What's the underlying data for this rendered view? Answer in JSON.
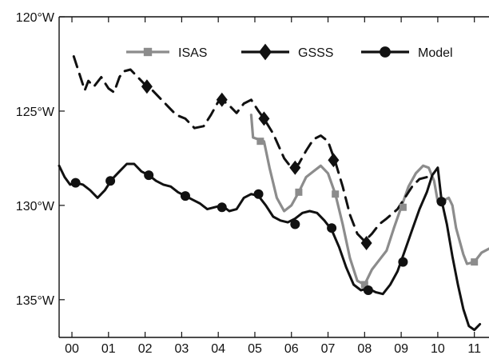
{
  "chart_data": {
    "type": "line",
    "title": "",
    "xlabel": "",
    "ylabel": "",
    "xlim": [
      -0.35,
      11.4
    ],
    "ylim": [
      137,
      120
    ],
    "y_reversed": true,
    "grid": false,
    "legend_position": "top",
    "x_ticks": [
      {
        "value": 0,
        "label": "00"
      },
      {
        "value": 1,
        "label": "01"
      },
      {
        "value": 2,
        "label": "02"
      },
      {
        "value": 3,
        "label": "03"
      },
      {
        "value": 4,
        "label": "04"
      },
      {
        "value": 5,
        "label": "05"
      },
      {
        "value": 6,
        "label": "06"
      },
      {
        "value": 7,
        "label": "07"
      },
      {
        "value": 8,
        "label": "08"
      },
      {
        "value": 9,
        "label": "09"
      },
      {
        "value": 10,
        "label": "10"
      },
      {
        "value": 11,
        "label": "11"
      }
    ],
    "y_ticks": [
      {
        "value": 120,
        "label": "120°W"
      },
      {
        "value": 125,
        "label": "125°W"
      },
      {
        "value": 130,
        "label": "130°W"
      },
      {
        "value": 135,
        "label": "135°W"
      }
    ],
    "series": [
      {
        "name": "ISAS",
        "color": "#8c8c8c",
        "line_style": "solid",
        "marker": "square",
        "points": [
          [
            4.9,
            125.2
          ],
          [
            4.95,
            126.4
          ],
          [
            5.1,
            126.5
          ],
          [
            5.25,
            126.6
          ],
          [
            5.4,
            128.0
          ],
          [
            5.6,
            129.6
          ],
          [
            5.8,
            130.3
          ],
          [
            6.0,
            130.0
          ],
          [
            6.2,
            129.3
          ],
          [
            6.4,
            128.5
          ],
          [
            6.6,
            128.2
          ],
          [
            6.8,
            127.9
          ],
          [
            7.0,
            128.3
          ],
          [
            7.2,
            129.4
          ],
          [
            7.4,
            131.0
          ],
          [
            7.6,
            132.8
          ],
          [
            7.8,
            134.0
          ],
          [
            8.0,
            134.2
          ],
          [
            8.2,
            133.4
          ],
          [
            8.4,
            132.9
          ],
          [
            8.6,
            132.4
          ],
          [
            8.8,
            131.2
          ],
          [
            9.0,
            130.1
          ],
          [
            9.2,
            129.0
          ],
          [
            9.4,
            128.3
          ],
          [
            9.6,
            127.9
          ],
          [
            9.75,
            128.0
          ],
          [
            9.9,
            128.7
          ],
          [
            10.0,
            129.8
          ],
          [
            10.1,
            130.0
          ],
          [
            10.2,
            129.7
          ],
          [
            10.3,
            129.6
          ],
          [
            10.4,
            130.0
          ],
          [
            10.5,
            131.2
          ],
          [
            10.7,
            132.6
          ],
          [
            10.8,
            133.1
          ],
          [
            11.0,
            133.0
          ],
          [
            11.2,
            132.5
          ],
          [
            11.4,
            132.3
          ]
        ],
        "marker_points": [
          [
            5.15,
            126.6
          ],
          [
            6.2,
            129.3
          ],
          [
            7.2,
            129.4
          ],
          [
            8.0,
            134.2
          ],
          [
            9.05,
            130.1
          ],
          [
            11.0,
            133.0
          ]
        ]
      },
      {
        "name": "GSSS",
        "color": "#111111",
        "line_style": "dashed",
        "marker": "diamond",
        "points": [
          [
            0.05,
            122.1
          ],
          [
            0.2,
            123.0
          ],
          [
            0.35,
            123.9
          ],
          [
            0.45,
            123.4
          ],
          [
            0.6,
            123.7
          ],
          [
            0.8,
            123.2
          ],
          [
            1.0,
            123.8
          ],
          [
            1.15,
            124.0
          ],
          [
            1.3,
            123.2
          ],
          [
            1.4,
            122.9
          ],
          [
            1.6,
            122.8
          ],
          [
            1.8,
            123.2
          ],
          [
            2.0,
            123.6
          ],
          [
            2.2,
            123.9
          ],
          [
            2.4,
            124.3
          ],
          [
            2.6,
            124.7
          ],
          [
            2.85,
            125.2
          ],
          [
            3.1,
            125.4
          ],
          [
            3.35,
            125.9
          ],
          [
            3.6,
            125.8
          ],
          [
            3.8,
            125.2
          ],
          [
            4.0,
            124.5
          ],
          [
            4.1,
            124.4
          ],
          [
            4.3,
            124.7
          ],
          [
            4.5,
            125.1
          ],
          [
            4.7,
            124.6
          ],
          [
            4.9,
            124.4
          ],
          [
            5.1,
            125.0
          ],
          [
            5.25,
            125.4
          ],
          [
            5.5,
            126.2
          ],
          [
            5.8,
            127.5
          ],
          [
            6.0,
            128.0
          ],
          [
            6.2,
            127.8
          ],
          [
            6.4,
            127.1
          ],
          [
            6.6,
            126.5
          ],
          [
            6.8,
            126.3
          ],
          [
            7.0,
            126.6
          ],
          [
            7.2,
            127.7
          ],
          [
            7.4,
            129.0
          ],
          [
            7.6,
            130.5
          ],
          [
            7.8,
            131.5
          ],
          [
            8.0,
            131.9
          ],
          [
            8.2,
            131.5
          ],
          [
            8.4,
            131.0
          ],
          [
            8.6,
            130.7
          ],
          [
            8.9,
            130.2
          ],
          [
            9.1,
            129.6
          ],
          [
            9.3,
            129.0
          ],
          [
            9.5,
            128.6
          ],
          [
            9.7,
            128.5
          ],
          [
            9.8,
            128.7
          ]
        ],
        "marker_points": [
          [
            2.05,
            123.7
          ],
          [
            4.1,
            124.4
          ],
          [
            5.25,
            125.4
          ],
          [
            6.1,
            128.0
          ],
          [
            7.15,
            127.6
          ],
          [
            8.05,
            132.0
          ]
        ]
      },
      {
        "name": "Model",
        "color": "#111111",
        "line_style": "solid",
        "marker": "circle",
        "points": [
          [
            -0.35,
            127.9
          ],
          [
            -0.2,
            128.5
          ],
          [
            -0.05,
            128.9
          ],
          [
            0.1,
            128.8
          ],
          [
            0.3,
            128.9
          ],
          [
            0.5,
            129.2
          ],
          [
            0.7,
            129.6
          ],
          [
            0.9,
            129.2
          ],
          [
            1.1,
            128.6
          ],
          [
            1.3,
            128.2
          ],
          [
            1.5,
            127.8
          ],
          [
            1.7,
            127.8
          ],
          [
            1.9,
            128.2
          ],
          [
            2.1,
            128.4
          ],
          [
            2.3,
            128.7
          ],
          [
            2.5,
            128.9
          ],
          [
            2.7,
            129.0
          ],
          [
            2.9,
            129.3
          ],
          [
            3.1,
            129.5
          ],
          [
            3.3,
            129.7
          ],
          [
            3.5,
            129.9
          ],
          [
            3.7,
            130.2
          ],
          [
            3.9,
            130.1
          ],
          [
            4.1,
            130.0
          ],
          [
            4.3,
            130.3
          ],
          [
            4.5,
            130.2
          ],
          [
            4.7,
            129.6
          ],
          [
            4.9,
            129.4
          ],
          [
            5.1,
            129.5
          ],
          [
            5.3,
            130.0
          ],
          [
            5.5,
            130.6
          ],
          [
            5.7,
            130.8
          ],
          [
            5.9,
            130.9
          ],
          [
            6.1,
            130.7
          ],
          [
            6.3,
            130.4
          ],
          [
            6.5,
            130.3
          ],
          [
            6.7,
            130.4
          ],
          [
            6.9,
            130.8
          ],
          [
            7.1,
            131.3
          ],
          [
            7.3,
            132.2
          ],
          [
            7.5,
            133.3
          ],
          [
            7.7,
            134.2
          ],
          [
            7.9,
            134.5
          ],
          [
            8.1,
            134.4
          ],
          [
            8.3,
            134.6
          ],
          [
            8.5,
            134.7
          ],
          [
            8.7,
            134.2
          ],
          [
            8.9,
            133.5
          ],
          [
            9.1,
            132.4
          ],
          [
            9.3,
            131.3
          ],
          [
            9.5,
            130.2
          ],
          [
            9.7,
            129.3
          ],
          [
            9.85,
            128.4
          ],
          [
            10.0,
            128.0
          ],
          [
            10.1,
            129.7
          ],
          [
            10.25,
            131.0
          ],
          [
            10.4,
            132.7
          ],
          [
            10.55,
            134.2
          ],
          [
            10.7,
            135.5
          ],
          [
            10.85,
            136.4
          ],
          [
            11.0,
            136.6
          ],
          [
            11.15,
            136.3
          ]
        ],
        "marker_points": [
          [
            0.1,
            128.8
          ],
          [
            1.05,
            128.7
          ],
          [
            2.1,
            128.4
          ],
          [
            3.1,
            129.5
          ],
          [
            4.1,
            130.1
          ],
          [
            5.1,
            129.4
          ],
          [
            6.1,
            131.0
          ],
          [
            7.1,
            131.2
          ],
          [
            8.1,
            134.5
          ],
          [
            9.05,
            133.0
          ],
          [
            10.1,
            129.8
          ]
        ]
      }
    ]
  }
}
